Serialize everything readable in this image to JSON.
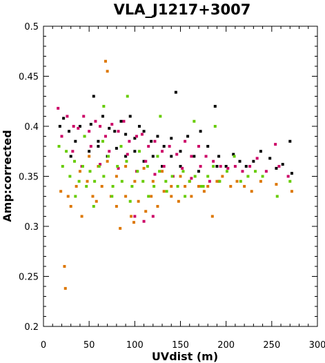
{
  "chart_data": {
    "type": "scatter",
    "title": "VLA_J1217+3007",
    "xlabel": "UVdist (m)",
    "ylabel": "Amp:corrected",
    "xlim": [
      0,
      300
    ],
    "ylim": [
      0.2,
      0.5
    ],
    "xticks": [
      0,
      50,
      100,
      150,
      200,
      250,
      300
    ],
    "yticks": [
      0.2,
      0.25,
      0.3,
      0.35,
      0.4,
      0.45,
      0.5
    ],
    "x_tick_labels": [
      "0",
      "50",
      "100",
      "150",
      "200",
      "250",
      "300"
    ],
    "y_tick_labels": [
      "0.2",
      "0.25",
      "0.3",
      "0.35",
      "0.4",
      "0.45",
      "0.5"
    ],
    "grid": false,
    "legend": "none",
    "marker": "square",
    "series": [
      {
        "color": "#000000",
        "points": [
          [
            18,
            0.4
          ],
          [
            22,
            0.408
          ],
          [
            28,
            0.395
          ],
          [
            35,
            0.385
          ],
          [
            40,
            0.4
          ],
          [
            45,
            0.39
          ],
          [
            52,
            0.402
          ],
          [
            55,
            0.43
          ],
          [
            60,
            0.385
          ],
          [
            65,
            0.41
          ],
          [
            72,
            0.398
          ],
          [
            78,
            0.395
          ],
          [
            85,
            0.405
          ],
          [
            90,
            0.392
          ],
          [
            95,
            0.41
          ],
          [
            100,
            0.388
          ],
          [
            105,
            0.4
          ],
          [
            110,
            0.395
          ],
          [
            118,
            0.385
          ],
          [
            125,
            0.39
          ],
          [
            132,
            0.38
          ],
          [
            140,
            0.388
          ],
          [
            145,
            0.434
          ],
          [
            150,
            0.375
          ],
          [
            158,
            0.39
          ],
          [
            165,
            0.37
          ],
          [
            172,
            0.395
          ],
          [
            180,
            0.38
          ],
          [
            188,
            0.42
          ],
          [
            192,
            0.37
          ],
          [
            200,
            0.36
          ],
          [
            208,
            0.372
          ],
          [
            215,
            0.365
          ],
          [
            222,
            0.36
          ],
          [
            230,
            0.365
          ],
          [
            238,
            0.375
          ],
          [
            248,
            0.368
          ],
          [
            255,
            0.358
          ],
          [
            262,
            0.362
          ],
          [
            270,
            0.385
          ],
          [
            272,
            0.353
          ],
          [
            30,
            0.37
          ],
          [
            50,
            0.375
          ],
          [
            70,
            0.37
          ],
          [
            90,
            0.37
          ],
          [
            110,
            0.365
          ],
          [
            130,
            0.36
          ],
          [
            150,
            0.36
          ],
          [
            170,
            0.355
          ],
          [
            190,
            0.36
          ],
          [
            60,
            0.38
          ],
          [
            80,
            0.378
          ],
          [
            100,
            0.375
          ],
          [
            120,
            0.37
          ],
          [
            140,
            0.37
          ]
        ]
      },
      {
        "color": "#cc0066",
        "points": [
          [
            16,
            0.418
          ],
          [
            20,
            0.39
          ],
          [
            26,
            0.41
          ],
          [
            33,
            0.4
          ],
          [
            38,
            0.398
          ],
          [
            44,
            0.41
          ],
          [
            50,
            0.395
          ],
          [
            57,
            0.405
          ],
          [
            62,
            0.4
          ],
          [
            68,
            0.39
          ],
          [
            75,
            0.402
          ],
          [
            82,
            0.395
          ],
          [
            88,
            0.405
          ],
          [
            94,
            0.385
          ],
          [
            102,
            0.39
          ],
          [
            108,
            0.392
          ],
          [
            115,
            0.38
          ],
          [
            122,
            0.385
          ],
          [
            130,
            0.375
          ],
          [
            138,
            0.38
          ],
          [
            146,
            0.372
          ],
          [
            155,
            0.385
          ],
          [
            162,
            0.37
          ],
          [
            170,
            0.38
          ],
          [
            178,
            0.37
          ],
          [
            186,
            0.365
          ],
          [
            194,
            0.36
          ],
          [
            202,
            0.358
          ],
          [
            210,
            0.36
          ],
          [
            218,
            0.355
          ],
          [
            226,
            0.36
          ],
          [
            234,
            0.368
          ],
          [
            244,
            0.355
          ],
          [
            254,
            0.382
          ],
          [
            258,
            0.36
          ],
          [
            268,
            0.35
          ],
          [
            32,
            0.375
          ],
          [
            52,
            0.38
          ],
          [
            72,
            0.375
          ],
          [
            92,
            0.372
          ],
          [
            112,
            0.365
          ],
          [
            132,
            0.36
          ],
          [
            152,
            0.358
          ],
          [
            172,
            0.36
          ],
          [
            192,
            0.345
          ],
          [
            42,
            0.36
          ],
          [
            62,
            0.362
          ],
          [
            82,
            0.358
          ],
          [
            102,
            0.355
          ],
          [
            122,
            0.352
          ],
          [
            142,
            0.35
          ],
          [
            162,
            0.348
          ],
          [
            182,
            0.345
          ],
          [
            100,
            0.31
          ],
          [
            110,
            0.305
          ],
          [
            120,
            0.31
          ]
        ]
      },
      {
        "color": "#dd7700",
        "points": [
          [
            19,
            0.335
          ],
          [
            23,
            0.26
          ],
          [
            24,
            0.238
          ],
          [
            27,
            0.33
          ],
          [
            30,
            0.32
          ],
          [
            36,
            0.34
          ],
          [
            42,
            0.31
          ],
          [
            48,
            0.345
          ],
          [
            54,
            0.33
          ],
          [
            58,
            0.325
          ],
          [
            64,
            0.34
          ],
          [
            68,
            0.465
          ],
          [
            70,
            0.455
          ],
          [
            74,
            0.33
          ],
          [
            80,
            0.32
          ],
          [
            84,
            0.298
          ],
          [
            90,
            0.33
          ],
          [
            96,
            0.31
          ],
          [
            99,
            0.304
          ],
          [
            104,
            0.325
          ],
          [
            112,
            0.315
          ],
          [
            118,
            0.33
          ],
          [
            125,
            0.32
          ],
          [
            132,
            0.335
          ],
          [
            140,
            0.33
          ],
          [
            148,
            0.325
          ],
          [
            155,
            0.34
          ],
          [
            162,
            0.33
          ],
          [
            170,
            0.34
          ],
          [
            176,
            0.335
          ],
          [
            185,
            0.31
          ],
          [
            190,
            0.345
          ],
          [
            196,
            0.35
          ],
          [
            205,
            0.34
          ],
          [
            212,
            0.345
          ],
          [
            220,
            0.34
          ],
          [
            228,
            0.335
          ],
          [
            238,
            0.345
          ],
          [
            255,
            0.342
          ],
          [
            272,
            0.335
          ],
          [
            40,
            0.355
          ],
          [
            60,
            0.36
          ],
          [
            80,
            0.35
          ],
          [
            100,
            0.345
          ],
          [
            120,
            0.345
          ],
          [
            140,
            0.34
          ],
          [
            160,
            0.345
          ],
          [
            180,
            0.34
          ],
          [
            50,
            0.37
          ],
          [
            70,
            0.365
          ],
          [
            90,
            0.36
          ],
          [
            110,
            0.358
          ],
          [
            130,
            0.355
          ],
          [
            150,
            0.35
          ]
        ]
      },
      {
        "color": "#66cc00",
        "points": [
          [
            17,
            0.38
          ],
          [
            21,
            0.36
          ],
          [
            25,
            0.375
          ],
          [
            29,
            0.35
          ],
          [
            34,
            0.365
          ],
          [
            39,
            0.345
          ],
          [
            43,
            0.36
          ],
          [
            47,
            0.34
          ],
          [
            51,
            0.355
          ],
          [
            56,
            0.345
          ],
          [
            61,
            0.36
          ],
          [
            66,
            0.35
          ],
          [
            71,
            0.37
          ],
          [
            76,
            0.34
          ],
          [
            81,
            0.36
          ],
          [
            86,
            0.345
          ],
          [
            91,
            0.365
          ],
          [
            97,
            0.34
          ],
          [
            103,
            0.355
          ],
          [
            109,
            0.345
          ],
          [
            114,
            0.36
          ],
          [
            121,
            0.34
          ],
          [
            127,
            0.355
          ],
          [
            134,
            0.345
          ],
          [
            141,
            0.35
          ],
          [
            147,
            0.34
          ],
          [
            153,
            0.355
          ],
          [
            160,
            0.345
          ],
          [
            166,
            0.35
          ],
          [
            173,
            0.34
          ],
          [
            180,
            0.35
          ],
          [
            186,
            0.36
          ],
          [
            193,
            0.345
          ],
          [
            201,
            0.355
          ],
          [
            209,
            0.37
          ],
          [
            216,
            0.345
          ],
          [
            224,
            0.35
          ],
          [
            232,
            0.355
          ],
          [
            240,
            0.35
          ],
          [
            256,
            0.33
          ],
          [
            270,
            0.345
          ],
          [
            66,
            0.42
          ],
          [
            92,
            0.43
          ],
          [
            128,
            0.41
          ],
          [
            165,
            0.405
          ],
          [
            188,
            0.4
          ],
          [
            35,
            0.33
          ],
          [
            55,
            0.32
          ],
          [
            75,
            0.33
          ],
          [
            95,
            0.325
          ],
          [
            115,
            0.33
          ],
          [
            135,
            0.335
          ],
          [
            155,
            0.33
          ],
          [
            175,
            0.34
          ],
          [
            45,
            0.39
          ],
          [
            65,
            0.385
          ],
          [
            85,
            0.38
          ],
          [
            105,
            0.375
          ],
          [
            125,
            0.37
          ]
        ]
      }
    ]
  }
}
